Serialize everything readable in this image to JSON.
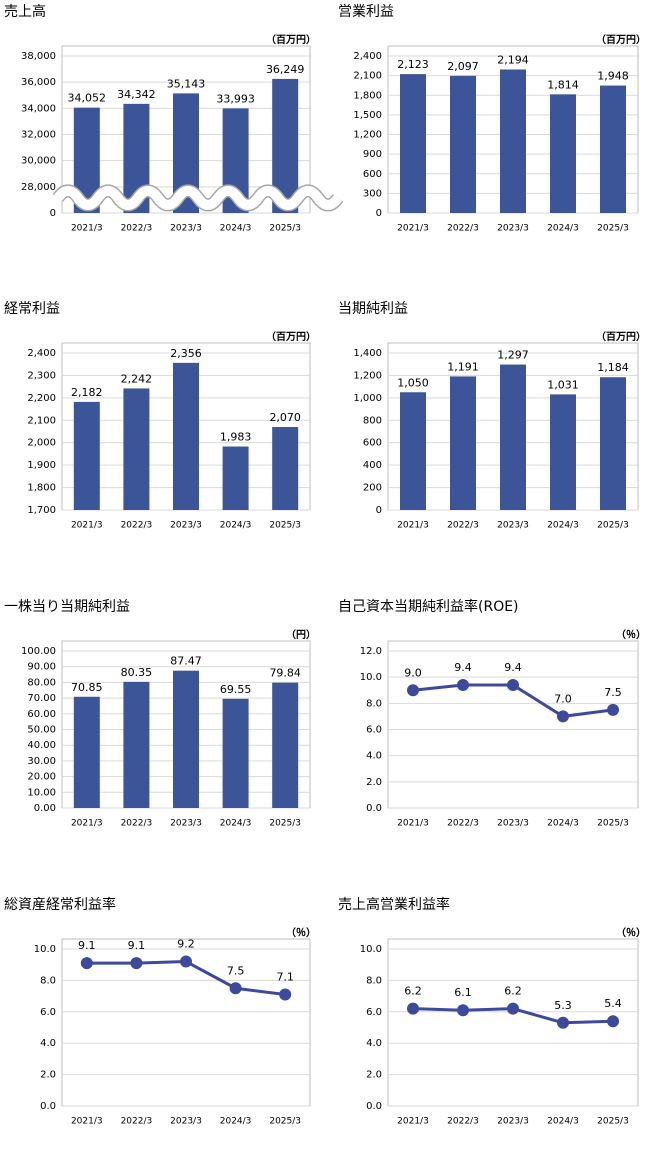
{
  "chart_data": [
    {
      "type": "bar",
      "title": "売上高",
      "unit": "（百万円）",
      "categories": [
        "2021/3",
        "2022/3",
        "2023/3",
        "2024/3",
        "2025/3"
      ],
      "values": [
        34052,
        34342,
        35143,
        33993,
        36249
      ],
      "value_labels": [
        "34,052",
        "34,342",
        "35,143",
        "33,993",
        "36,249"
      ],
      "color": "#3b5598",
      "ylim": [
        0,
        38000
      ],
      "axis_break": true,
      "grid": true,
      "yticks": [
        0,
        {
          "value": 28000,
          "label": "28,000"
        },
        {
          "value": 30000,
          "label": "30,000"
        },
        {
          "value": 32000,
          "label": "32,000"
        },
        {
          "value": 34000,
          "label": "34,000"
        },
        {
          "value": 36000,
          "label": "36,000"
        },
        {
          "value": 38000,
          "label": "38,000"
        }
      ]
    },
    {
      "type": "bar",
      "title": "営業利益",
      "unit": "（百万円）",
      "categories": [
        "2021/3",
        "2022/3",
        "2023/3",
        "2024/3",
        "2025/3"
      ],
      "values": [
        2123,
        2097,
        2194,
        1814,
        1948
      ],
      "value_labels": [
        "2,123",
        "2,097",
        "2,194",
        "1,814",
        "1,948"
      ],
      "color": "#3b5598",
      "ylim": [
        0,
        2400
      ],
      "grid": true,
      "yticks": [
        0,
        300,
        600,
        900,
        {
          "value": 1200,
          "label": "1,200"
        },
        {
          "value": 1500,
          "label": "1,500"
        },
        {
          "value": 1800,
          "label": "1,800"
        },
        {
          "value": 2100,
          "label": "2,100"
        },
        {
          "value": 2400,
          "label": "2,400"
        }
      ]
    },
    {
      "type": "bar",
      "title": "経常利益",
      "unit": "（百万円）",
      "categories": [
        "2021/3",
        "2022/3",
        "2023/3",
        "2024/3",
        "2025/3"
      ],
      "values": [
        2182,
        2242,
        2356,
        1983,
        2070
      ],
      "value_labels": [
        "2,182",
        "2,242",
        "2,356",
        "1,983",
        "2,070"
      ],
      "color": "#3b5598",
      "ylim": [
        1700,
        2400
      ],
      "grid": true,
      "yticks": [
        {
          "value": 1700,
          "label": "1,700"
        },
        {
          "value": 1800,
          "label": "1,800"
        },
        {
          "value": 1900,
          "label": "1,900"
        },
        {
          "value": 2000,
          "label": "2,000"
        },
        {
          "value": 2100,
          "label": "2,100"
        },
        {
          "value": 2200,
          "label": "2,200"
        },
        {
          "value": 2300,
          "label": "2,300"
        },
        {
          "value": 2400,
          "label": "2,400"
        }
      ]
    },
    {
      "type": "bar",
      "title": "当期純利益",
      "unit": "（百万円）",
      "categories": [
        "2021/3",
        "2022/3",
        "2023/3",
        "2024/3",
        "2025/3"
      ],
      "values": [
        1050,
        1191,
        1297,
        1031,
        1184
      ],
      "value_labels": [
        "1,050",
        "1,191",
        "1,297",
        "1,031",
        "1,184"
      ],
      "color": "#3b5598",
      "ylim": [
        0,
        1400
      ],
      "grid": true,
      "yticks": [
        0,
        200,
        400,
        600,
        800,
        {
          "value": 1000,
          "label": "1,000"
        },
        {
          "value": 1200,
          "label": "1,200"
        },
        {
          "value": 1400,
          "label": "1,400"
        }
      ]
    },
    {
      "type": "bar",
      "title": "一株当り当期純利益",
      "unit": "（円）",
      "categories": [
        "2021/3",
        "2022/3",
        "2023/3",
        "2024/3",
        "2025/3"
      ],
      "values": [
        70.85,
        80.35,
        87.47,
        69.55,
        79.84
      ],
      "color": "#3b5598",
      "ylim": [
        0,
        100
      ],
      "grid": true,
      "yticks": [
        {
          "value": 0,
          "label": "0.00"
        },
        {
          "value": 10,
          "label": "10.00"
        },
        {
          "value": 20,
          "label": "20.00"
        },
        {
          "value": 30,
          "label": "30.00"
        },
        {
          "value": 40,
          "label": "40.00"
        },
        {
          "value": 50,
          "label": "50.00"
        },
        {
          "value": 60,
          "label": "60.00"
        },
        {
          "value": 70,
          "label": "70.00"
        },
        {
          "value": 80,
          "label": "80.00"
        },
        {
          "value": 90,
          "label": "90.00"
        },
        {
          "value": 100,
          "label": "100.00"
        }
      ]
    },
    {
      "type": "line",
      "title": "自己資本当期純利益率(ROE)",
      "unit": "（％）",
      "categories": [
        "2021/3",
        "2022/3",
        "2023/3",
        "2024/3",
        "2025/3"
      ],
      "values": [
        9.0,
        9.4,
        9.4,
        7.0,
        7.5
      ],
      "value_labels": [
        "9.0",
        "9.4",
        "9.4",
        "7.0",
        "7.5"
      ],
      "color": "#3d4a9c",
      "ylim": [
        0,
        12
      ],
      "grid": true,
      "yticks": [
        {
          "value": 0,
          "label": "0.0"
        },
        {
          "value": 2,
          "label": "2.0"
        },
        {
          "value": 4,
          "label": "4.0"
        },
        {
          "value": 6,
          "label": "6.0"
        },
        {
          "value": 8,
          "label": "8.0"
        },
        {
          "value": 10,
          "label": "10.0"
        },
        {
          "value": 12,
          "label": "12.0"
        }
      ]
    },
    {
      "type": "line",
      "title": "総資産経常利益率",
      "unit": "（％）",
      "categories": [
        "2021/3",
        "2022/3",
        "2023/3",
        "2024/3",
        "2025/3"
      ],
      "values": [
        9.1,
        9.1,
        9.2,
        7.5,
        7.1
      ],
      "color": "#3d4a9c",
      "ylim": [
        0,
        10
      ],
      "grid": true,
      "yticks": [
        {
          "value": 0,
          "label": "0.0"
        },
        {
          "value": 2,
          "label": "2.0"
        },
        {
          "value": 4,
          "label": "4.0"
        },
        {
          "value": 6,
          "label": "6.0"
        },
        {
          "value": 8,
          "label": "8.0"
        },
        {
          "value": 10,
          "label": "10.0"
        }
      ]
    },
    {
      "type": "line",
      "title": "売上高営業利益率",
      "unit": "（％）",
      "categories": [
        "2021/3",
        "2022/3",
        "2023/3",
        "2024/3",
        "2025/3"
      ],
      "values": [
        6.2,
        6.1,
        6.2,
        5.3,
        5.4
      ],
      "color": "#3d4a9c",
      "ylim": [
        0,
        10
      ],
      "grid": true,
      "yticks": [
        {
          "value": 0,
          "label": "0.0"
        },
        {
          "value": 2,
          "label": "2.0"
        },
        {
          "value": 4,
          "label": "4.0"
        },
        {
          "value": 6,
          "label": "6.0"
        },
        {
          "value": 8,
          "label": "8.0"
        },
        {
          "value": 10,
          "label": "10.0"
        }
      ]
    }
  ]
}
